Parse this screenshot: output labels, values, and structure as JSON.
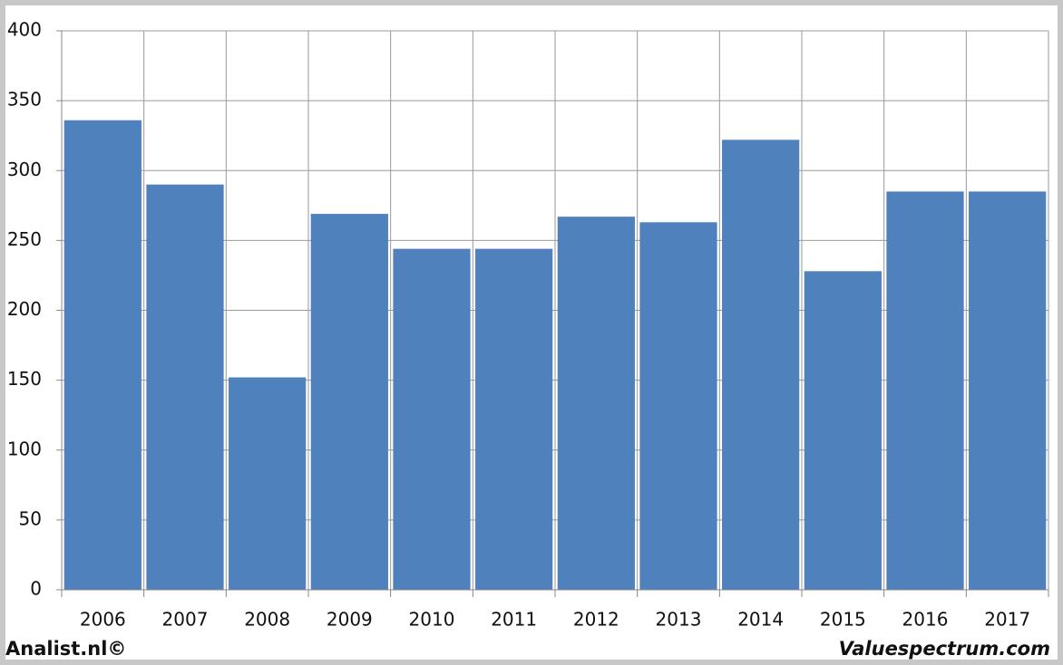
{
  "chart_data": {
    "type": "bar",
    "categories": [
      "2006",
      "2007",
      "2008",
      "2009",
      "2010",
      "2011",
      "2012",
      "2013",
      "2014",
      "2015",
      "2016",
      "2017"
    ],
    "values": [
      336,
      290,
      152,
      269,
      244,
      244,
      267,
      263,
      322,
      228,
      285,
      285
    ],
    "color": "#4f81bd",
    "ylim": [
      0,
      400
    ],
    "yticks": [
      0,
      50,
      100,
      150,
      200,
      250,
      300,
      350,
      400
    ],
    "grid": true
  },
  "footer": {
    "left": "Analist.nl©",
    "right": "Valuespectrum.com"
  }
}
